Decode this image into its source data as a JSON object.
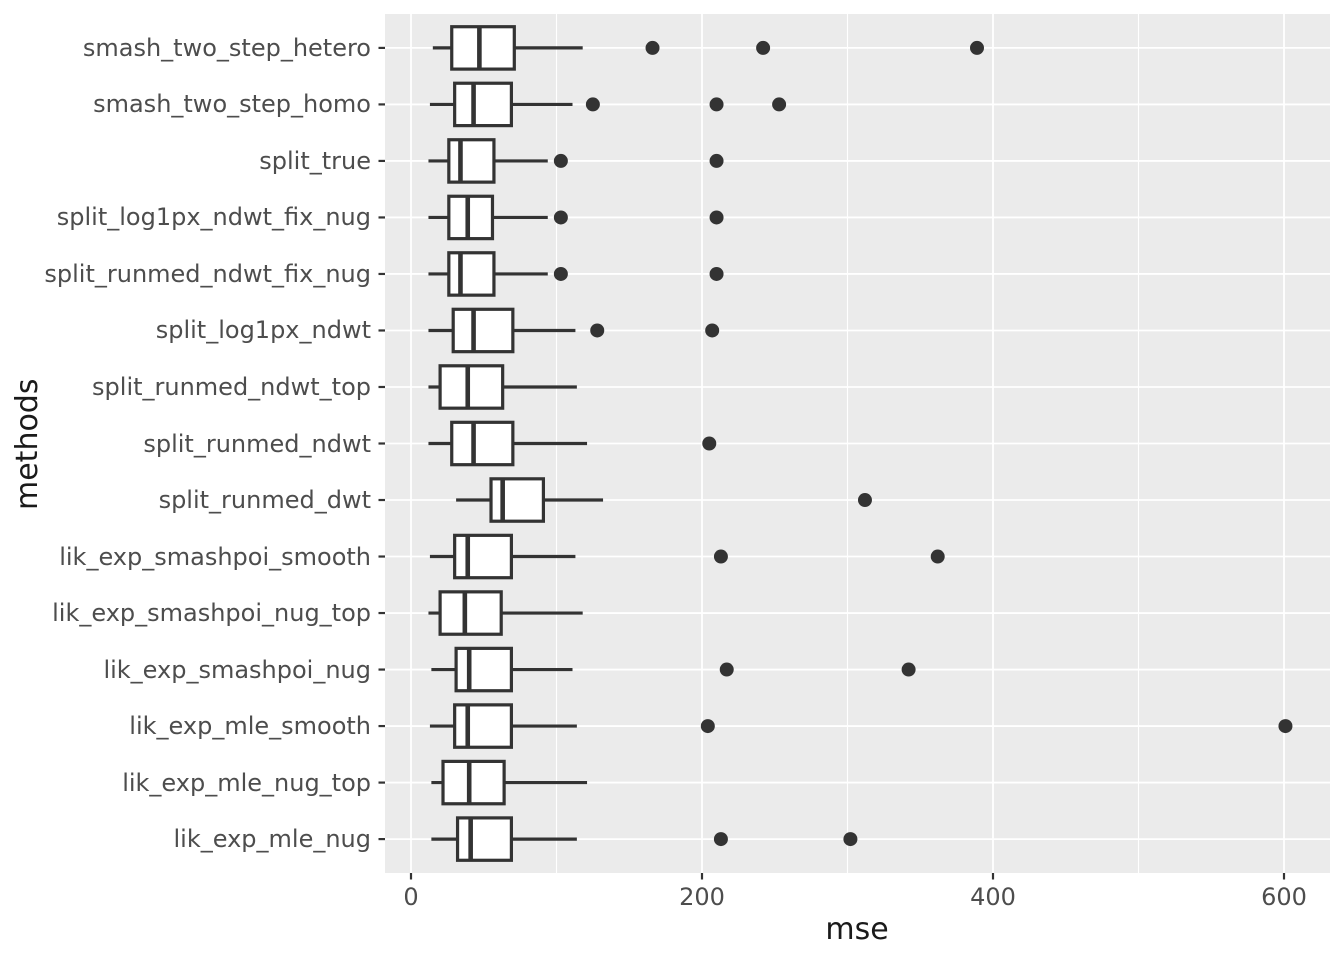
{
  "chart_data": {
    "type": "boxplot",
    "orientation": "horizontal",
    "title": "",
    "xlabel": "mse",
    "ylabel": "methods",
    "xlim": [
      -20,
      632
    ],
    "x_major_ticks": [
      0,
      200,
      400,
      600
    ],
    "x_minor_gridlines": [
      100,
      300,
      500
    ],
    "grid": "on",
    "legend": "none",
    "series": [
      {
        "method": "smash_two_step_hetero",
        "whisker_low": 15,
        "q1": 28,
        "median": 47,
        "q3": 71,
        "whisker_high": 118,
        "outliers": [
          166,
          242,
          389
        ]
      },
      {
        "method": "smash_two_step_homo",
        "whisker_low": 13,
        "q1": 30,
        "median": 43,
        "q3": 69,
        "whisker_high": 111,
        "outliers": [
          125,
          210,
          253
        ]
      },
      {
        "method": "split_true",
        "whisker_low": 12,
        "q1": 26,
        "median": 34,
        "q3": 57,
        "whisker_high": 94,
        "outliers": [
          103,
          210
        ]
      },
      {
        "method": "split_log1px_ndwt_fix_nug",
        "whisker_low": 12,
        "q1": 26,
        "median": 39,
        "q3": 56,
        "whisker_high": 94,
        "outliers": [
          103,
          210
        ]
      },
      {
        "method": "split_runmed_ndwt_fix_nug",
        "whisker_low": 12,
        "q1": 26,
        "median": 34,
        "q3": 57,
        "whisker_high": 94,
        "outliers": [
          103,
          210
        ]
      },
      {
        "method": "split_log1px_ndwt",
        "whisker_low": 12,
        "q1": 29,
        "median": 43,
        "q3": 70,
        "whisker_high": 113,
        "outliers": [
          128,
          207
        ]
      },
      {
        "method": "split_runmed_ndwt_top",
        "whisker_low": 12,
        "q1": 20,
        "median": 39,
        "q3": 63,
        "whisker_high": 114,
        "outliers": []
      },
      {
        "method": "split_runmed_ndwt",
        "whisker_low": 12,
        "q1": 28,
        "median": 43,
        "q3": 70,
        "whisker_high": 121,
        "outliers": [
          205
        ]
      },
      {
        "method": "split_runmed_dwt",
        "whisker_low": 31,
        "q1": 55,
        "median": 63,
        "q3": 91,
        "whisker_high": 132,
        "outliers": [
          312
        ]
      },
      {
        "method": "lik_exp_smashpoi_smooth",
        "whisker_low": 13,
        "q1": 30,
        "median": 39,
        "q3": 69,
        "whisker_high": 113,
        "outliers": [
          213,
          362
        ]
      },
      {
        "method": "lik_exp_smashpoi_nug_top",
        "whisker_low": 12,
        "q1": 20,
        "median": 37,
        "q3": 62,
        "whisker_high": 118,
        "outliers": []
      },
      {
        "method": "lik_exp_smashpoi_nug",
        "whisker_low": 14,
        "q1": 31,
        "median": 40,
        "q3": 69,
        "whisker_high": 111,
        "outliers": [
          217,
          342
        ]
      },
      {
        "method": "lik_exp_mle_smooth",
        "whisker_low": 13,
        "q1": 30,
        "median": 39,
        "q3": 69,
        "whisker_high": 114,
        "outliers": [
          204,
          601
        ]
      },
      {
        "method": "lik_exp_mle_nug_top",
        "whisker_low": 14,
        "q1": 22,
        "median": 40,
        "q3": 64,
        "whisker_high": 121,
        "outliers": []
      },
      {
        "method": "lik_exp_mle_nug",
        "whisker_low": 14,
        "q1": 32,
        "median": 41,
        "q3": 69,
        "whisker_high": 114,
        "outliers": [
          213,
          302
        ]
      }
    ]
  },
  "colors": {
    "figure_background": "#FFFFFF",
    "panel_background": "#EBEBEB",
    "grid": "#FFFFFF",
    "box_stroke": "#333333",
    "box_fill": "#FFFFFF",
    "outlier": "#333333",
    "axis_tick": "#333333",
    "tick_label": "#4D4D4D",
    "axis_title": "#1A1A1A"
  }
}
